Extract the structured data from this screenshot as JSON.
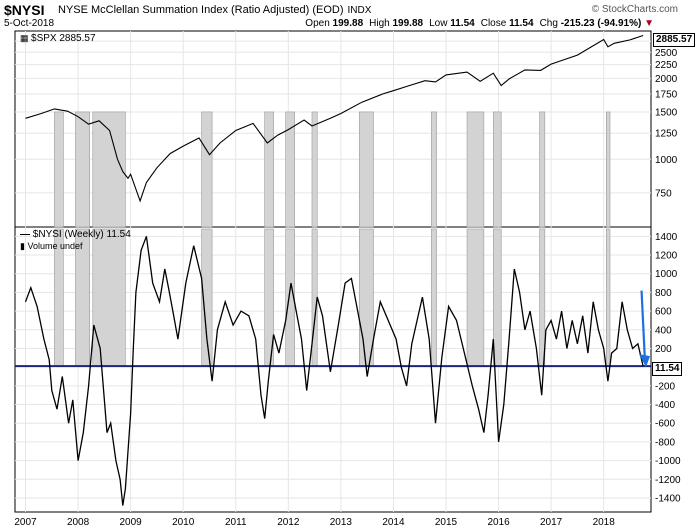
{
  "header": {
    "symbol": "$NYSI",
    "title": "NYSE McClellan Summation Index (Ratio Adjusted) (EOD)",
    "exchange": "INDX",
    "date": "5-Oct-2018",
    "watermark": "© StockCharts.com",
    "ohlc": {
      "open_label": "Open",
      "open": "199.88",
      "high_label": "High",
      "high": "199.88",
      "low_label": "Low",
      "low": "11.54",
      "close_label": "Close",
      "close": "11.54",
      "chg_label": "Chg",
      "chg": "-215.23 (-94.91%)",
      "chg_marker": "▼"
    }
  },
  "chart_data": [
    {
      "type": "line",
      "name": "spx-panel",
      "legend": "$SPX 2885.57",
      "last_value_tag": "2885.57",
      "y_scale": "log",
      "ylim": [
        560,
        3000
      ],
      "y_ticks": [
        "750",
        "1000",
        "1250",
        "1500",
        "1750",
        "2000",
        "2250",
        "2500",
        "2750"
      ],
      "y_tick_values": [
        750,
        1000,
        1250,
        1500,
        1750,
        2000,
        2250,
        2500,
        2750
      ],
      "series": [
        {
          "x": [
            2007.0,
            2007.3,
            2007.55,
            2007.8,
            2008.0,
            2008.2,
            2008.4,
            2008.6,
            2008.75,
            2008.85,
            2008.95,
            2009.0,
            2009.18,
            2009.3,
            2009.5,
            2009.75,
            2010.0,
            2010.3,
            2010.5,
            2010.7,
            2011.0,
            2011.33,
            2011.6,
            2011.8,
            2012.0,
            2012.3,
            2012.45,
            2012.8,
            2013.0,
            2013.4,
            2013.8,
            2014.0,
            2014.3,
            2014.6,
            2014.8,
            2015.0,
            2015.4,
            2015.65,
            2015.9,
            2016.05,
            2016.2,
            2016.5,
            2016.8,
            2017.0,
            2017.5,
            2018.0,
            2018.08,
            2018.2,
            2018.5,
            2018.75
          ],
          "values": [
            1420,
            1480,
            1540,
            1510,
            1440,
            1350,
            1390,
            1280,
            1000,
            900,
            850,
            880,
            700,
            820,
            930,
            1050,
            1120,
            1200,
            1040,
            1150,
            1280,
            1360,
            1150,
            1230,
            1290,
            1400,
            1330,
            1420,
            1480,
            1630,
            1750,
            1800,
            1880,
            1960,
            1940,
            2060,
            2110,
            1950,
            2090,
            1880,
            1990,
            2150,
            2140,
            2260,
            2440,
            2790,
            2620,
            2700,
            2780,
            2885.57
          ]
        }
      ]
    },
    {
      "type": "line",
      "name": "nysi-panel",
      "legend": "$NYSI (Weekly) 11.54",
      "volume_legend": "Volume undef",
      "last_value_tag": "11.54",
      "reference_line": 11.54,
      "ylim": [
        -1550,
        1500
      ],
      "y_ticks": [
        "-1400",
        "-1200",
        "-1000",
        "-800",
        "-600",
        "-400",
        "-200",
        "200",
        "400",
        "600",
        "800",
        "1000",
        "1200",
        "1400"
      ],
      "y_tick_values": [
        -1400,
        -1200,
        -1000,
        -800,
        -600,
        -400,
        -200,
        200,
        400,
        600,
        800,
        1000,
        1200,
        1400
      ],
      "series": [
        {
          "x": [
            2007.0,
            2007.1,
            2007.22,
            2007.35,
            2007.45,
            2007.5,
            2007.6,
            2007.7,
            2007.82,
            2007.9,
            2008.0,
            2008.1,
            2008.2,
            2008.3,
            2008.42,
            2008.55,
            2008.62,
            2008.72,
            2008.8,
            2008.85,
            2008.9,
            2009.0,
            2009.05,
            2009.1,
            2009.2,
            2009.3,
            2009.42,
            2009.55,
            2009.65,
            2009.72,
            2009.82,
            2009.9,
            2010.05,
            2010.2,
            2010.35,
            2010.45,
            2010.55,
            2010.65,
            2010.8,
            2010.95,
            2011.1,
            2011.25,
            2011.38,
            2011.48,
            2011.55,
            2011.62,
            2011.72,
            2011.82,
            2011.95,
            2012.05,
            2012.15,
            2012.25,
            2012.35,
            2012.45,
            2012.55,
            2012.65,
            2012.8,
            2012.95,
            2013.08,
            2013.2,
            2013.32,
            2013.42,
            2013.5,
            2013.62,
            2013.75,
            2013.9,
            2014.05,
            2014.15,
            2014.25,
            2014.35,
            2014.45,
            2014.55,
            2014.68,
            2014.8,
            2014.92,
            2015.05,
            2015.2,
            2015.35,
            2015.5,
            2015.62,
            2015.72,
            2015.8,
            2015.9,
            2016.0,
            2016.1,
            2016.2,
            2016.3,
            2016.4,
            2016.5,
            2016.6,
            2016.72,
            2016.82,
            2016.9,
            2017.0,
            2017.1,
            2017.2,
            2017.3,
            2017.4,
            2017.5,
            2017.6,
            2017.7,
            2017.8,
            2017.9,
            2018.0,
            2018.08,
            2018.15,
            2018.25,
            2018.35,
            2018.45,
            2018.55,
            2018.65,
            2018.75
          ],
          "values": [
            700,
            850,
            650,
            300,
            80,
            -250,
            -450,
            -100,
            -600,
            -350,
            -1000,
            -700,
            -200,
            450,
            200,
            -700,
            -600,
            -1000,
            -1200,
            -1480,
            -1300,
            -500,
            200,
            800,
            1250,
            1400,
            900,
            700,
            1050,
            850,
            550,
            300,
            900,
            1300,
            950,
            300,
            -150,
            400,
            700,
            450,
            600,
            550,
            300,
            -300,
            -550,
            -150,
            350,
            150,
            500,
            900,
            600,
            300,
            -250,
            250,
            750,
            550,
            -50,
            450,
            900,
            950,
            600,
            300,
            -100,
            300,
            700,
            500,
            300,
            0,
            -200,
            250,
            500,
            750,
            300,
            -600,
            100,
            650,
            500,
            150,
            -200,
            -450,
            -700,
            -300,
            300,
            -800,
            -400,
            300,
            1050,
            800,
            400,
            600,
            200,
            -300,
            400,
            500,
            300,
            600,
            200,
            500,
            250,
            550,
            150,
            700,
            400,
            200,
            -150,
            150,
            200,
            700,
            400,
            200,
            250,
            11.54
          ]
        }
      ],
      "shaded_regions": [
        [
          2007.55,
          2007.72
        ],
        [
          2007.95,
          2008.22
        ],
        [
          2008.28,
          2008.9
        ],
        [
          2010.35,
          2010.55
        ],
        [
          2011.55,
          2011.72
        ],
        [
          2011.95,
          2012.12
        ],
        [
          2012.45,
          2012.55
        ],
        [
          2013.35,
          2013.62
        ],
        [
          2014.72,
          2014.82
        ],
        [
          2015.4,
          2015.72
        ],
        [
          2015.9,
          2016.05
        ],
        [
          2016.78,
          2016.88
        ],
        [
          2018.05,
          2018.12
        ]
      ]
    }
  ],
  "x_axis": {
    "labels": [
      "2007",
      "2008",
      "2009",
      "2010",
      "2011",
      "2012",
      "2013",
      "2014",
      "2015",
      "2016",
      "2017",
      "2018"
    ],
    "values": [
      2007,
      2008,
      2009,
      2010,
      2011,
      2012,
      2013,
      2014,
      2015,
      2016,
      2017,
      2018
    ],
    "xlim": [
      2006.8,
      2018.9
    ]
  },
  "colors": {
    "line": "#000000",
    "reference_line": "#1a237e",
    "arrow": "#1e6fe0",
    "shading": "#d3d3d3",
    "shading_edge": "#9a9a9a",
    "grid": "#e6e6e6",
    "panel_bg": "#ffffff"
  },
  "annotation": {
    "arrow_icon": "down-arrow-icon"
  }
}
